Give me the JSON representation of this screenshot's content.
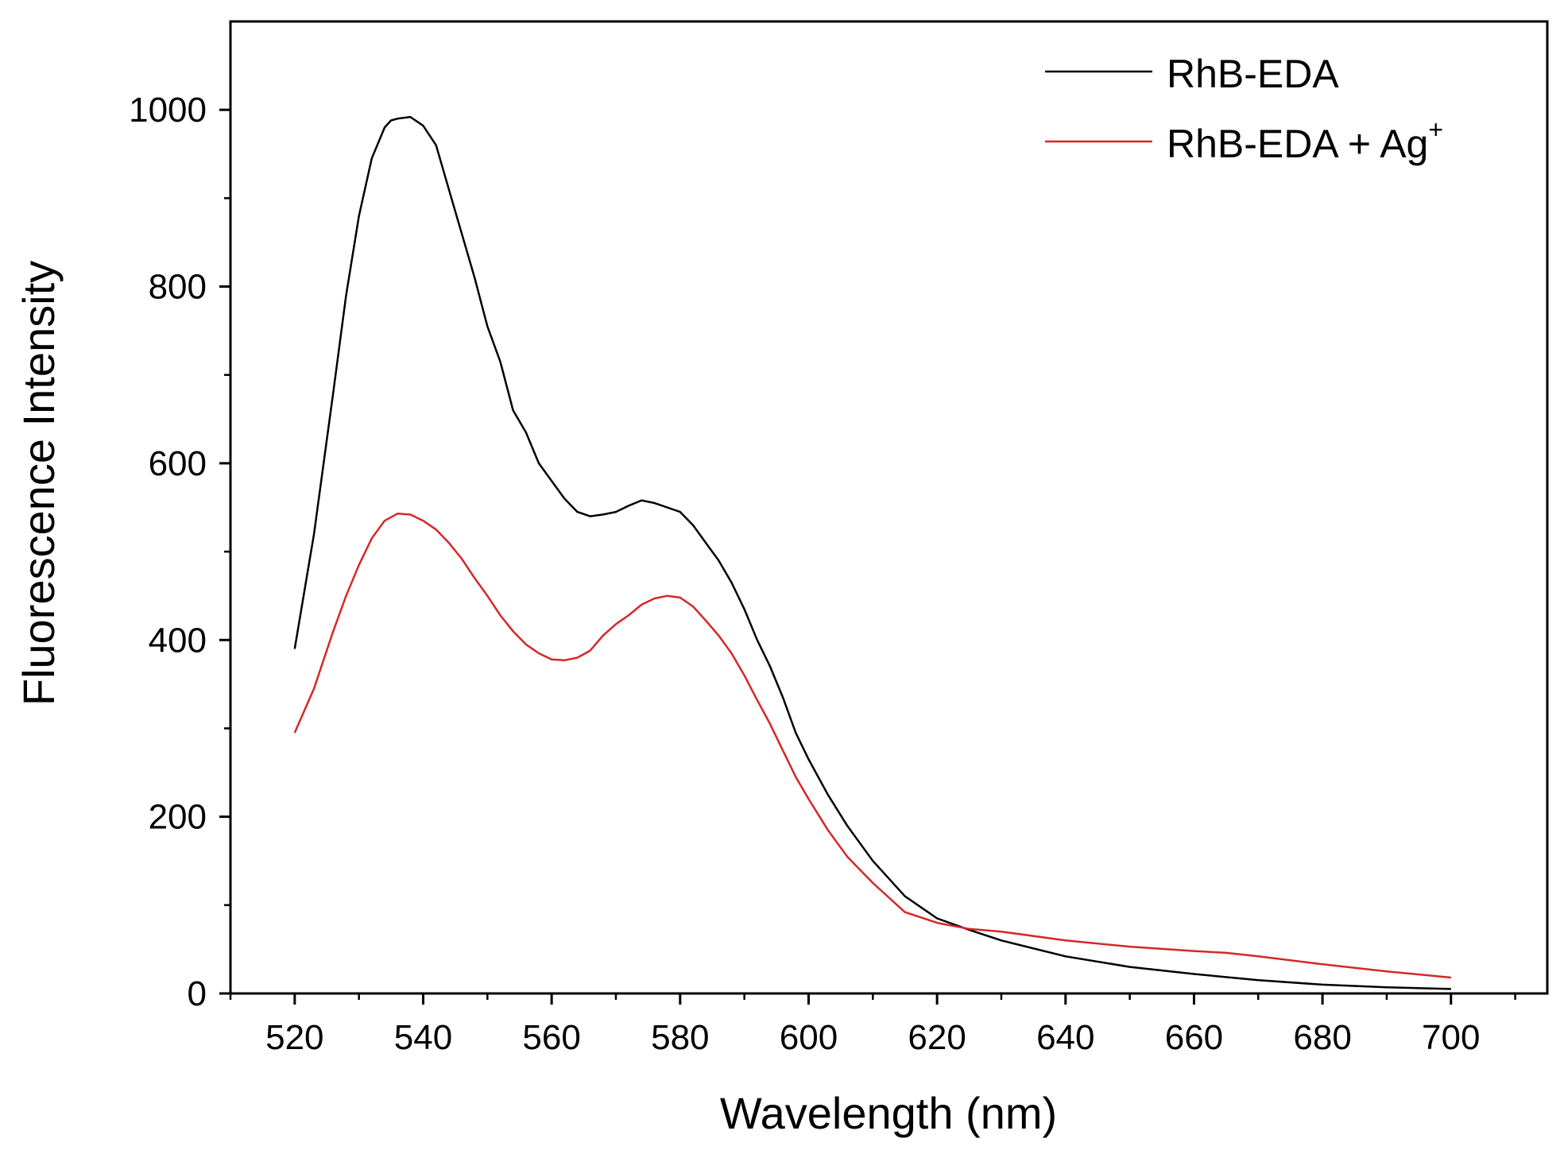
{
  "chart_data": {
    "type": "line",
    "title": "",
    "xlabel": "Wavelength (nm)",
    "ylabel": "Fluorescence Intensity",
    "xlim": [
      510,
      715
    ],
    "ylim": [
      0,
      1100
    ],
    "xticks": [
      520,
      540,
      560,
      580,
      600,
      620,
      640,
      660,
      680,
      700
    ],
    "yticks": [
      0,
      200,
      400,
      600,
      800,
      1000
    ],
    "grid": false,
    "legend_position": "top-right",
    "series": [
      {
        "name": "RhB-EDA",
        "color": "#000000",
        "x": [
          520,
          523,
          526,
          528,
          530,
          532,
          534,
          535,
          536,
          538,
          540,
          542,
          544,
          546,
          548,
          550,
          552,
          554,
          556,
          558,
          560,
          562,
          564,
          566,
          568,
          570,
          572,
          574,
          576,
          578,
          580,
          582,
          584,
          586,
          588,
          590,
          592,
          594,
          596,
          598,
          600,
          603,
          606,
          610,
          615,
          620,
          625,
          630,
          640,
          650,
          660,
          670,
          680,
          690,
          700
        ],
        "y": [
          390,
          520,
          680,
          790,
          880,
          945,
          980,
          988,
          990,
          992,
          982,
          960,
          910,
          860,
          810,
          755,
          715,
          660,
          635,
          600,
          580,
          560,
          545,
          540,
          542,
          545,
          552,
          558,
          555,
          550,
          545,
          530,
          510,
          490,
          465,
          435,
          400,
          370,
          335,
          295,
          265,
          225,
          190,
          150,
          110,
          85,
          72,
          60,
          42,
          30,
          22,
          15,
          10,
          7,
          5
        ]
      },
      {
        "name": "RhB-EDA + Ag",
        "name_superscript": "+",
        "color": "#d62728",
        "x": [
          520,
          523,
          526,
          528,
          530,
          532,
          534,
          536,
          538,
          540,
          542,
          544,
          546,
          548,
          550,
          552,
          554,
          556,
          558,
          560,
          562,
          564,
          566,
          568,
          570,
          572,
          574,
          576,
          578,
          580,
          582,
          584,
          586,
          588,
          590,
          592,
          594,
          596,
          598,
          600,
          603,
          606,
          610,
          615,
          620,
          625,
          630,
          640,
          650,
          660,
          665,
          670,
          680,
          690,
          700
        ],
        "y": [
          295,
          345,
          410,
          450,
          485,
          515,
          535,
          543,
          542,
          535,
          525,
          510,
          492,
          470,
          450,
          428,
          410,
          395,
          385,
          378,
          377,
          380,
          388,
          405,
          418,
          428,
          440,
          447,
          450,
          448,
          438,
          422,
          405,
          385,
          360,
          332,
          305,
          275,
          245,
          220,
          185,
          155,
          125,
          92,
          80,
          73,
          70,
          60,
          53,
          48,
          46,
          42,
          33,
          25,
          18
        ]
      }
    ]
  }
}
